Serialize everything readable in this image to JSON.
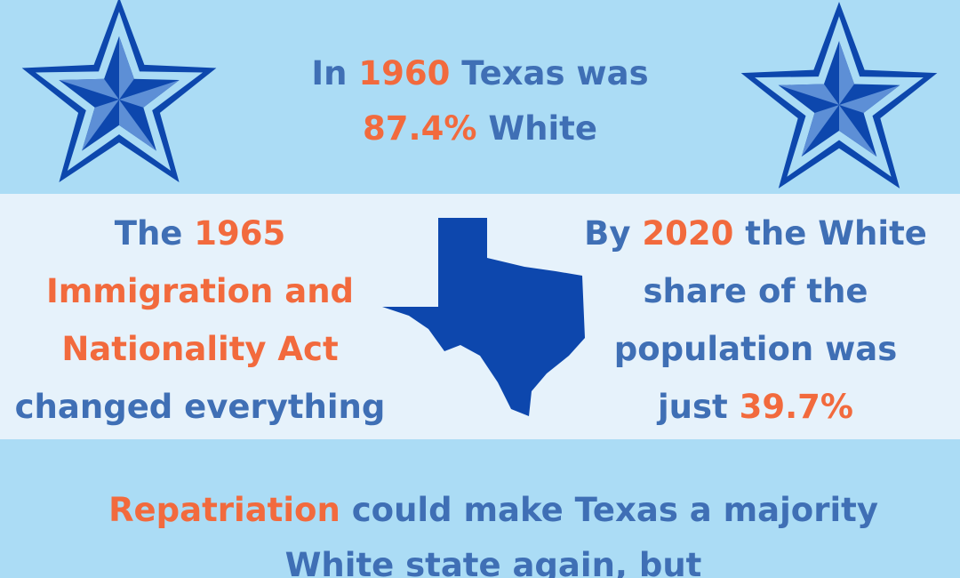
{
  "top": {
    "lines": [
      [
        {
          "text": "In"
        },
        {
          "text": "1960",
          "accent": true
        },
        {
          "text": "Texas was"
        }
      ],
      [
        {
          "text": "87.4%",
          "accent": true
        },
        {
          "text": "White"
        }
      ]
    ]
  },
  "left": {
    "lines": [
      [
        {
          "text": "The"
        },
        {
          "text": "1965",
          "accent": true
        }
      ],
      [
        {
          "text": "Immigration and",
          "accent": true
        }
      ],
      [
        {
          "text": "Nationality Act",
          "accent": true
        }
      ],
      [
        {
          "text": "changed everything"
        }
      ]
    ]
  },
  "right": {
    "lines": [
      [
        {
          "text": "By"
        },
        {
          "text": "2020",
          "accent": true
        },
        {
          "text": "the White"
        }
      ],
      [
        {
          "text": "share of the"
        }
      ],
      [
        {
          "text": "population was"
        }
      ],
      [
        {
          "text": "just"
        },
        {
          "text": "39.7%",
          "accent": true
        }
      ]
    ]
  },
  "bottom": {
    "lines": [
      [
        {
          "text": "Repatriation",
          "accent": true
        },
        {
          "text": "could make Texas a majority"
        }
      ],
      [
        {
          "text": "White state again, but"
        }
      ]
    ]
  }
}
